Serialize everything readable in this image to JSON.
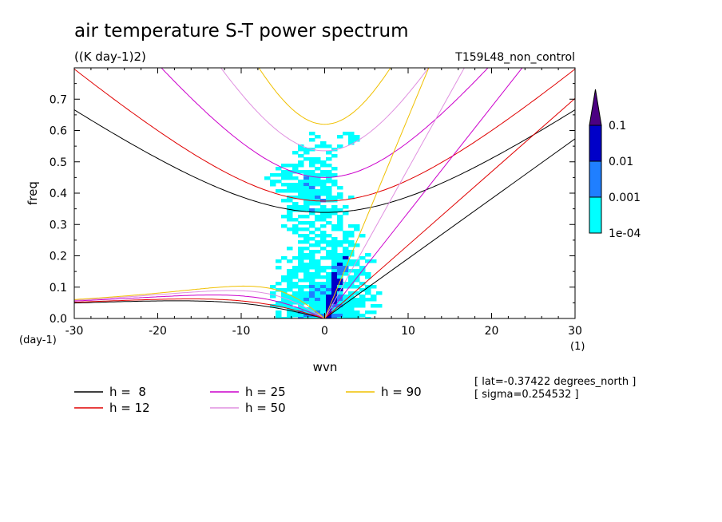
{
  "chart_data": {
    "type": "heatmap",
    "title": "air temperature S-T power spectrum",
    "units": "((K day-1)2)",
    "run_label": "T159L48_non_control",
    "xlabel": "wvn",
    "ylabel": "freq",
    "x_unit": "(1)",
    "y_unit": "(day-1)",
    "xlim": [
      -30,
      30
    ],
    "ylim": [
      0,
      0.8
    ],
    "x_ticks": [
      -30,
      -20,
      -10,
      0,
      10,
      20,
      30
    ],
    "y_ticks": [
      0.0,
      0.1,
      0.2,
      0.3,
      0.4,
      0.5,
      0.6,
      0.7
    ],
    "x_tick_labels": [
      "-30",
      "-20",
      "-10",
      "0",
      "10",
      "20",
      "30"
    ],
    "y_tick_labels": [
      "0.0",
      "0.1",
      "0.2",
      "0.3",
      "0.4",
      "0.5",
      "0.6",
      "0.7"
    ],
    "colorbar": {
      "levels": [
        "1e-04",
        "0.001",
        "0.01",
        "0.1"
      ],
      "colors": [
        "#00ffff",
        "#1f7fff",
        "#0000c8",
        "#4b0082"
      ]
    },
    "dispersion_curves": [
      {
        "label": "h =  8",
        "h": 8,
        "color": "#000000"
      },
      {
        "label": "h = 12",
        "h": 12,
        "color": "#e00000"
      },
      {
        "label": "h = 25",
        "h": 25,
        "color": "#cc00cc"
      },
      {
        "label": "h = 50",
        "h": 50,
        "color": "#e090e0"
      },
      {
        "label": "h = 90",
        "h": 90,
        "color": "#f0c000"
      }
    ],
    "annotations": [
      "[ lat=-0.37422 degrees_north ]",
      "[ sigma=0.254532 ]"
    ]
  }
}
